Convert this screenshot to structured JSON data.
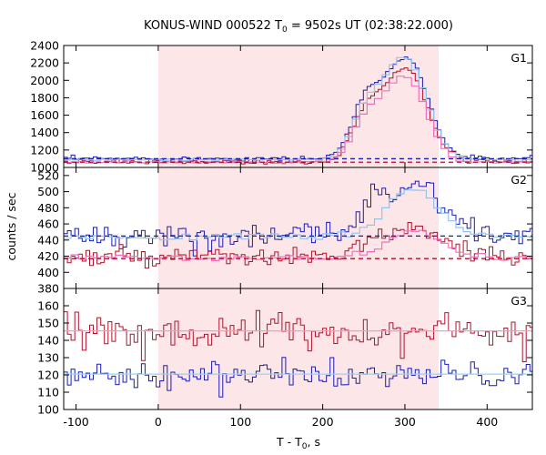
{
  "chart_data": {
    "type": "line",
    "title": "KONUS-WIND 000522 T",
    "title_sub": "0",
    "title_suffix": " = 9502s UT (02:38:22.000)",
    "xlabel_main": "T - T",
    "xlabel_sub": "0",
    "xlabel_suffix": ", s",
    "ylabel": "counts / sec",
    "xlim": [
      -115,
      455
    ],
    "xticks": [
      -100,
      0,
      100,
      200,
      300,
      400
    ],
    "xtick_labels": [
      "-100",
      "0",
      "100",
      "200",
      "300",
      "400"
    ],
    "highlight_interval": [
      0,
      341
    ],
    "colors": {
      "highlight": "#fde6e8",
      "blue_fine": "#1b1bb4",
      "blue_coarse": "#8fc5f0",
      "red_fine": "#b0102a",
      "red_coarse": "#f070c0",
      "background_blue": "#1b1bb4",
      "background_red": "#b0102a",
      "fit_pink": "#f49ac8",
      "fit_cyan": "#8fd8e8"
    },
    "panels": [
      {
        "label": "G1",
        "ylim": [
          1000,
          2400
        ],
        "yticks": [
          1000,
          1200,
          1400,
          1600,
          1800,
          2000,
          2200,
          2400
        ],
        "ytick_labels": [
          "1000",
          "1200",
          "1400",
          "1600",
          "1800",
          "2000",
          "2200",
          "2400"
        ],
        "background_levels": [
          {
            "color_key": "background_blue",
            "value": 1100
          },
          {
            "color_key": "background_red",
            "value": 1060
          }
        ],
        "series": [
          {
            "color_key": "blue_fine",
            "base": 1100,
            "noise": 15,
            "bin": 4.5,
            "peaks": [
              [
                250,
                16,
                380
              ],
              [
                290,
                30,
                860
              ],
              [
                312,
                20,
                420
              ]
            ]
          },
          {
            "color_key": "red_fine",
            "base": 1065,
            "noise": 14,
            "bin": 4.5,
            "peaks": [
              [
                250,
                16,
                310
              ],
              [
                290,
                30,
                820
              ],
              [
                312,
                20,
                360
              ]
            ]
          },
          {
            "color_key": "blue_coarse",
            "base": 1090,
            "noise": 6,
            "bin": 9,
            "peaks": [
              [
                250,
                16,
                340
              ],
              [
                292,
                28,
                960
              ],
              [
                312,
                20,
                300
              ]
            ]
          },
          {
            "color_key": "red_coarse",
            "base": 1060,
            "noise": 6,
            "bin": 9,
            "peaks": [
              [
                250,
                16,
                300
              ],
              [
                292,
                28,
                800
              ],
              [
                312,
                20,
                260
              ]
            ]
          }
        ]
      },
      {
        "label": "G2",
        "ylim": [
          380,
          530
        ],
        "yticks": [
          380,
          400,
          420,
          440,
          460,
          480,
          500,
          520
        ],
        "ytick_labels": [
          "380",
          "400",
          "420",
          "440",
          "460",
          "480",
          "500",
          "520"
        ],
        "background_levels": [
          {
            "color_key": "background_blue",
            "value": 445
          },
          {
            "color_key": "background_red",
            "value": 417
          }
        ],
        "series": [
          {
            "color_key": "blue_fine",
            "base": 445,
            "noise": 8,
            "bin": 4.5,
            "peaks": [
              [
                255,
                18,
                25
              ],
              [
                310,
                35,
                65
              ]
            ]
          },
          {
            "color_key": "red_fine",
            "base": 418,
            "noise": 6,
            "bin": 4.5,
            "peaks": [
              [
                255,
                18,
                12
              ],
              [
                310,
                35,
                35
              ]
            ]
          },
          {
            "color_key": "blue_coarse",
            "base": 444,
            "noise": 2,
            "bin": 9,
            "peaks": [
              [
                310,
                32,
                60
              ]
            ]
          },
          {
            "color_key": "red_coarse",
            "base": 418,
            "noise": 2,
            "bin": 9,
            "peaks": [
              [
                310,
                32,
                32
              ]
            ]
          }
        ]
      },
      {
        "label": "G3",
        "ylim": [
          100,
          170
        ],
        "yticks": [
          100,
          110,
          120,
          130,
          140,
          150,
          160
        ],
        "ytick_labels": [
          "100",
          "110",
          "120",
          "130",
          "140",
          "150",
          "160"
        ],
        "background_levels": [],
        "series": [
          {
            "color_key": "red_fine",
            "base": 145,
            "noise": 5,
            "bin": 4.5,
            "peaks": []
          },
          {
            "color_key": "blue_fine",
            "base": 120,
            "noise": 4,
            "bin": 4.5,
            "peaks": []
          },
          {
            "color_key": "fit_pink",
            "base": 145.5,
            "noise": 0,
            "bin": 9,
            "peaks": []
          },
          {
            "color_key": "fit_cyan",
            "base": 120.5,
            "noise": 0,
            "bin": 9,
            "peaks": []
          }
        ]
      }
    ]
  }
}
